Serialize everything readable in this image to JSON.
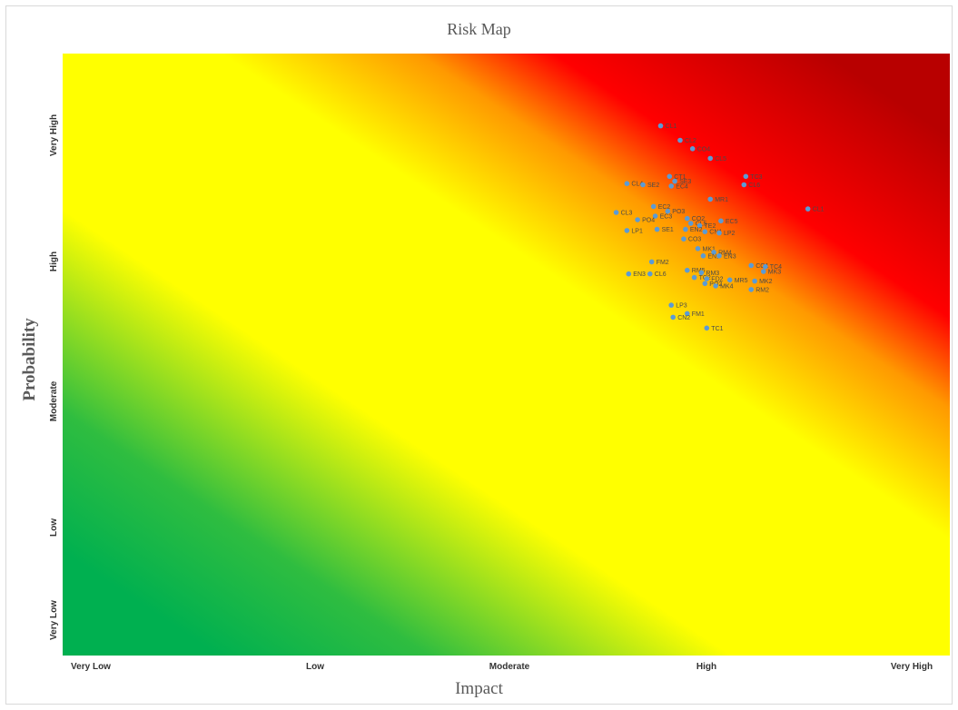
{
  "chart_data": {
    "type": "scatter",
    "title": "Risk Map",
    "xlabel": "Impact",
    "ylabel": "Probability",
    "x_ticks": [
      "Very Low",
      "Low",
      "Moderate",
      "High",
      "Very High"
    ],
    "y_ticks": [
      "Very Low",
      "Low",
      "Moderate",
      "High",
      "Very High"
    ],
    "xlim": [
      0.5,
      5.5
    ],
    "ylim": [
      0.5,
      5.5
    ],
    "grid": false,
    "background": "diagonal risk gradient green-yellow-red",
    "colors": {
      "point": "#5b9bd5",
      "green": "#00b050",
      "yellow": "#ffff00",
      "red": "#ff0000",
      "dark_red": "#c00000"
    },
    "points": [
      {
        "label": "CL1",
        "x": 3.87,
        "y": 4.9
      },
      {
        "label": "CL2",
        "x": 3.98,
        "y": 4.78
      },
      {
        "label": "CO4",
        "x": 4.05,
        "y": 4.71
      },
      {
        "label": "CL5",
        "x": 4.15,
        "y": 4.63
      },
      {
        "label": "CT1",
        "x": 3.92,
        "y": 4.48
      },
      {
        "label": "SE3",
        "x": 3.95,
        "y": 4.44
      },
      {
        "label": "EC4",
        "x": 3.93,
        "y": 4.4
      },
      {
        "label": "TC3",
        "x": 4.35,
        "y": 4.48
      },
      {
        "label": "CL6",
        "x": 4.34,
        "y": 4.41
      },
      {
        "label": "CL4",
        "x": 3.68,
        "y": 4.42
      },
      {
        "label": "SE2",
        "x": 3.77,
        "y": 4.41
      },
      {
        "label": "MR1",
        "x": 4.15,
        "y": 4.29
      },
      {
        "label": "CL1",
        "x": 4.7,
        "y": 4.21
      },
      {
        "label": "EC2",
        "x": 3.83,
        "y": 4.23
      },
      {
        "label": "PO3",
        "x": 3.91,
        "y": 4.19
      },
      {
        "label": "CL3",
        "x": 3.62,
        "y": 4.18
      },
      {
        "label": "EC3",
        "x": 3.84,
        "y": 4.15
      },
      {
        "label": "PO4",
        "x": 3.74,
        "y": 4.12
      },
      {
        "label": "CO2",
        "x": 4.02,
        "y": 4.13
      },
      {
        "label": "CL5",
        "x": 4.04,
        "y": 4.09
      },
      {
        "label": "TE2",
        "x": 4.09,
        "y": 4.07
      },
      {
        "label": "EC5",
        "x": 4.21,
        "y": 4.11
      },
      {
        "label": "LP1",
        "x": 3.68,
        "y": 4.03
      },
      {
        "label": "SE1",
        "x": 3.85,
        "y": 4.04
      },
      {
        "label": "EN2",
        "x": 4.01,
        "y": 4.04
      },
      {
        "label": "CN1",
        "x": 4.12,
        "y": 4.02
      },
      {
        "label": "LP2",
        "x": 4.2,
        "y": 4.01
      },
      {
        "label": "CO3",
        "x": 4.0,
        "y": 3.96
      },
      {
        "label": "MK1",
        "x": 4.08,
        "y": 3.88
      },
      {
        "label": "RM4",
        "x": 4.17,
        "y": 3.85
      },
      {
        "label": "EN1",
        "x": 4.11,
        "y": 3.82
      },
      {
        "label": "EN3",
        "x": 4.2,
        "y": 3.82
      },
      {
        "label": "FM2",
        "x": 3.82,
        "y": 3.77
      },
      {
        "label": "CO1",
        "x": 4.38,
        "y": 3.74
      },
      {
        "label": "TC4",
        "x": 4.46,
        "y": 3.73
      },
      {
        "label": "MK3",
        "x": 4.45,
        "y": 3.69
      },
      {
        "label": "RM5",
        "x": 4.02,
        "y": 3.7
      },
      {
        "label": "RM3",
        "x": 4.1,
        "y": 3.68
      },
      {
        "label": "EN3",
        "x": 3.69,
        "y": 3.67
      },
      {
        "label": "CL6",
        "x": 3.81,
        "y": 3.67
      },
      {
        "label": "TC2",
        "x": 4.06,
        "y": 3.64
      },
      {
        "label": "FD2",
        "x": 4.13,
        "y": 3.63
      },
      {
        "label": "MR5",
        "x": 4.26,
        "y": 3.62
      },
      {
        "label": "MK2",
        "x": 4.4,
        "y": 3.61
      },
      {
        "label": "PO2",
        "x": 4.12,
        "y": 3.59
      },
      {
        "label": "MK4",
        "x": 4.18,
        "y": 3.57
      },
      {
        "label": "RM2",
        "x": 4.38,
        "y": 3.54
      },
      {
        "label": "LP3",
        "x": 3.93,
        "y": 3.41
      },
      {
        "label": "FM1",
        "x": 4.02,
        "y": 3.34
      },
      {
        "label": "CN2",
        "x": 3.94,
        "y": 3.31
      },
      {
        "label": "TC1",
        "x": 4.13,
        "y": 3.22
      }
    ]
  }
}
